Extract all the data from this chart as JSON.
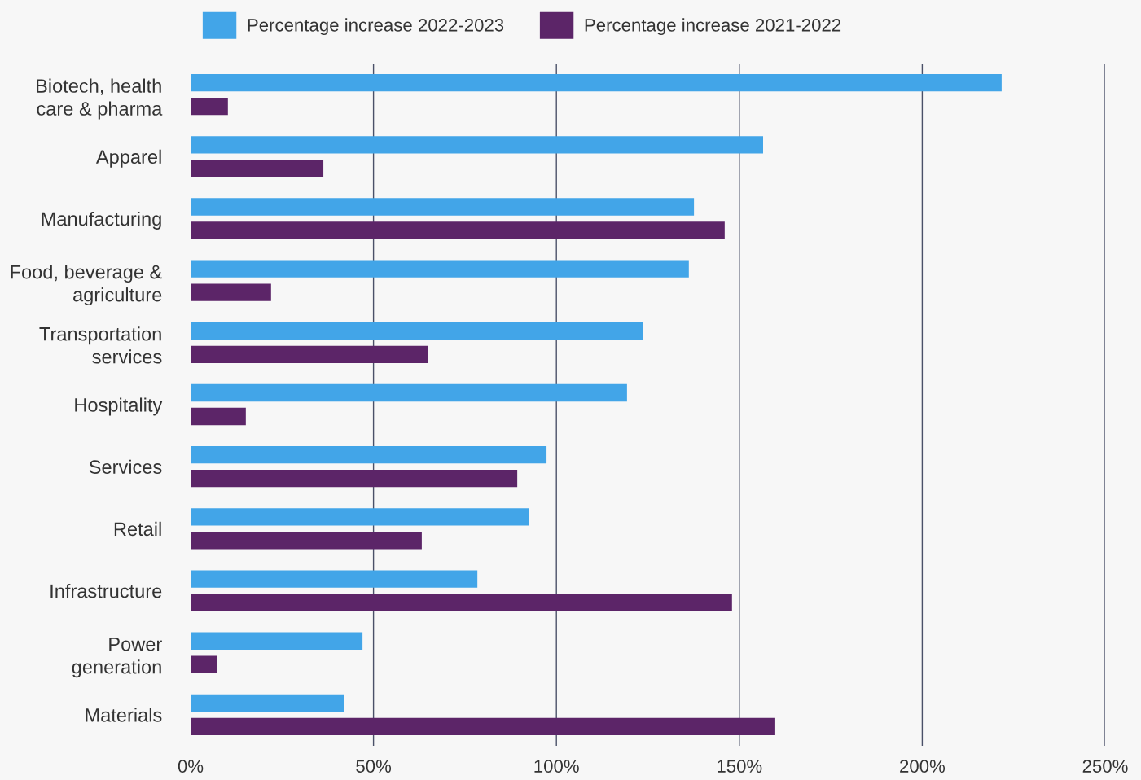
{
  "chart_data": {
    "type": "bar",
    "orientation": "horizontal",
    "categories": [
      "Biotech, health\ncare & pharma",
      "Apparel",
      "Manufacturing",
      "Food, beverage &\nagriculture",
      "Transportation\nservices",
      "Hospitality",
      "Services",
      "Retail",
      "Infrastructure",
      "Power\ngeneration",
      "Materials"
    ],
    "series": [
      {
        "name": "Percentage increase 2022-2023",
        "color": "#42a5e8",
        "values": [
          221.7,
          156.5,
          137.6,
          136.2,
          123.6,
          119.3,
          97.3,
          92.6,
          78.4,
          47,
          42
        ]
      },
      {
        "name": "Percentage increase 2021-2022",
        "color": "#5c2568",
        "values": [
          10.2,
          36.3,
          146,
          22,
          65,
          15.1,
          89.3,
          63.2,
          148,
          7.3,
          159.6
        ]
      }
    ],
    "xlim": [
      0,
      250
    ],
    "xticks": [
      {
        "value": 0,
        "label": "0%"
      },
      {
        "value": 50,
        "label": "50%"
      },
      {
        "value": 100,
        "label": "100%"
      },
      {
        "value": 150,
        "label": "150%"
      },
      {
        "value": 200,
        "label": "200%"
      },
      {
        "value": 250,
        "label": "250%"
      }
    ],
    "grid": "x",
    "legend": "top"
  }
}
